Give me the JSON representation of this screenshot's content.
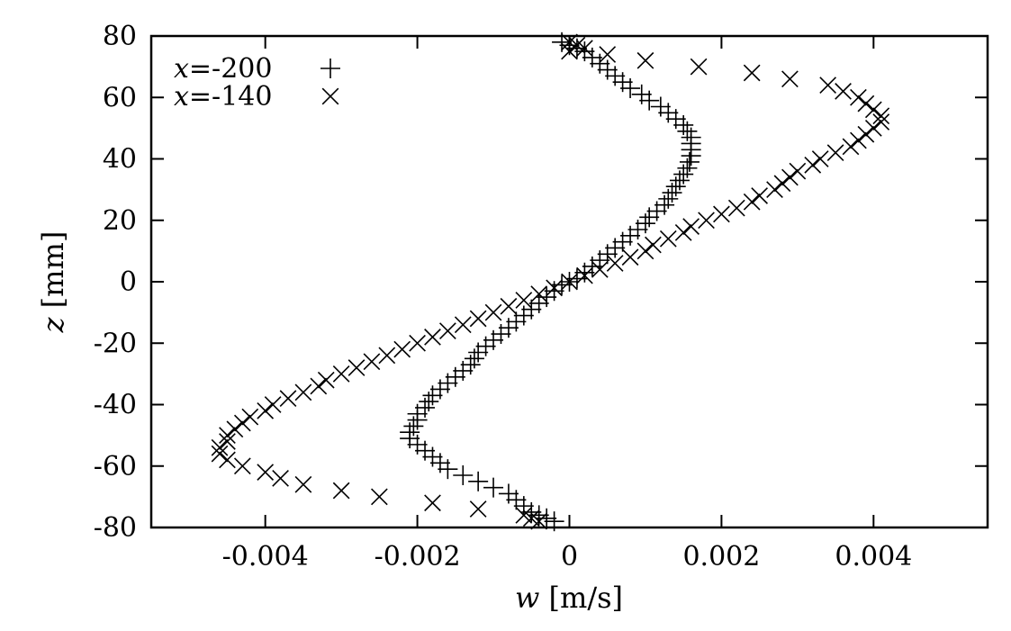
{
  "chart_data": {
    "type": "scatter",
    "title": "",
    "xlabel": {
      "var": "w",
      "unit": " [m/s]"
    },
    "ylabel": {
      "var": "z",
      "unit": " [mm]"
    },
    "xlim": [
      -0.0055,
      0.0055
    ],
    "ylim": [
      -80,
      80
    ],
    "xticks": [
      {
        "value": -0.004,
        "label": "-0.004"
      },
      {
        "value": -0.002,
        "label": "-0.002"
      },
      {
        "value": 0,
        "label": "0"
      },
      {
        "value": 0.002,
        "label": "0.002"
      },
      {
        "value": 0.004,
        "label": "0.004"
      }
    ],
    "yticks": [
      {
        "value": -80,
        "label": "-80"
      },
      {
        "value": -60,
        "label": "-60"
      },
      {
        "value": -40,
        "label": "-40"
      },
      {
        "value": -20,
        "label": "-20"
      },
      {
        "value": 0,
        "label": "0"
      },
      {
        "value": 20,
        "label": "20"
      },
      {
        "value": 40,
        "label": "40"
      },
      {
        "value": 60,
        "label": "60"
      },
      {
        "value": 80,
        "label": "80"
      }
    ],
    "grid": false,
    "legend_position": "top-left",
    "series": [
      {
        "name": {
          "var": "x",
          "rest": "=-200"
        },
        "marker": "plus",
        "points": [
          [
            -0.0001,
            78
          ],
          [
            0.0,
            77
          ],
          [
            0.0001,
            76
          ],
          [
            0.0002,
            75
          ],
          [
            0.0003,
            73
          ],
          [
            0.0004,
            71
          ],
          [
            0.0005,
            69
          ],
          [
            0.0006,
            67
          ],
          [
            0.0007,
            65
          ],
          [
            0.0008,
            63
          ],
          [
            0.00095,
            61
          ],
          [
            0.00105,
            59
          ],
          [
            0.0012,
            57
          ],
          [
            0.0013,
            55
          ],
          [
            0.0014,
            53
          ],
          [
            0.0015,
            51
          ],
          [
            0.00155,
            49
          ],
          [
            0.0016,
            47
          ],
          [
            0.0016,
            45
          ],
          [
            0.0016,
            43
          ],
          [
            0.0016,
            41
          ],
          [
            0.00158,
            39
          ],
          [
            0.00155,
            37
          ],
          [
            0.0015,
            35
          ],
          [
            0.00145,
            33
          ],
          [
            0.0014,
            31
          ],
          [
            0.00135,
            29
          ],
          [
            0.0013,
            27
          ],
          [
            0.00125,
            25
          ],
          [
            0.00115,
            23
          ],
          [
            0.00105,
            21
          ],
          [
            0.001,
            19
          ],
          [
            0.0009,
            17
          ],
          [
            0.0008,
            15
          ],
          [
            0.0007,
            13
          ],
          [
            0.0006,
            11
          ],
          [
            0.0005,
            9
          ],
          [
            0.0004,
            7
          ],
          [
            0.0003,
            5
          ],
          [
            0.0002,
            3
          ],
          [
            0.0001,
            1
          ],
          [
            0.0,
            0
          ],
          [
            -0.0001,
            -1
          ],
          [
            -0.0002,
            -3
          ],
          [
            -0.0003,
            -5
          ],
          [
            -0.0004,
            -7
          ],
          [
            -0.0005,
            -9
          ],
          [
            -0.0006,
            -11
          ],
          [
            -0.0007,
            -13
          ],
          [
            -0.0008,
            -15
          ],
          [
            -0.0009,
            -17
          ],
          [
            -0.001,
            -19
          ],
          [
            -0.0011,
            -21
          ],
          [
            -0.0012,
            -23
          ],
          [
            -0.00125,
            -25
          ],
          [
            -0.0013,
            -27
          ],
          [
            -0.0014,
            -29
          ],
          [
            -0.0015,
            -31
          ],
          [
            -0.0016,
            -33
          ],
          [
            -0.0017,
            -35
          ],
          [
            -0.0018,
            -37
          ],
          [
            -0.00185,
            -39
          ],
          [
            -0.0019,
            -41
          ],
          [
            -0.002,
            -43
          ],
          [
            -0.002,
            -45
          ],
          [
            -0.00205,
            -47
          ],
          [
            -0.0021,
            -49
          ],
          [
            -0.0021,
            -51
          ],
          [
            -0.002,
            -53
          ],
          [
            -0.0019,
            -55
          ],
          [
            -0.0018,
            -57
          ],
          [
            -0.0017,
            -59
          ],
          [
            -0.0016,
            -61
          ],
          [
            -0.0014,
            -63
          ],
          [
            -0.0012,
            -65
          ],
          [
            -0.001,
            -67
          ],
          [
            -0.0008,
            -69
          ],
          [
            -0.0007,
            -71
          ],
          [
            -0.0006,
            -73
          ],
          [
            -0.0005,
            -75
          ],
          [
            -0.0004,
            -76
          ],
          [
            -0.0003,
            -77
          ],
          [
            -0.0002,
            -78
          ]
        ]
      },
      {
        "name": {
          "var": "x",
          "rest": "=-140"
        },
        "marker": "cross",
        "points": [
          [
            0.0,
            78
          ],
          [
            0.0001,
            77
          ],
          [
            0.0002,
            76
          ],
          [
            0.0,
            75
          ],
          [
            0.0005,
            74
          ],
          [
            0.001,
            72
          ],
          [
            0.0017,
            70
          ],
          [
            0.0024,
            68
          ],
          [
            0.0029,
            66
          ],
          [
            0.0034,
            64
          ],
          [
            0.0036,
            62
          ],
          [
            0.0038,
            60
          ],
          [
            0.0039,
            58
          ],
          [
            0.004,
            56
          ],
          [
            0.0041,
            54
          ],
          [
            0.0041,
            52
          ],
          [
            0.004,
            50
          ],
          [
            0.0039,
            48
          ],
          [
            0.0038,
            46
          ],
          [
            0.0037,
            44
          ],
          [
            0.0035,
            42
          ],
          [
            0.0033,
            40
          ],
          [
            0.0032,
            38
          ],
          [
            0.003,
            36
          ],
          [
            0.0029,
            34
          ],
          [
            0.0028,
            32
          ],
          [
            0.0027,
            30
          ],
          [
            0.0025,
            28
          ],
          [
            0.0024,
            26
          ],
          [
            0.0022,
            24
          ],
          [
            0.002,
            22
          ],
          [
            0.0018,
            20
          ],
          [
            0.0016,
            18
          ],
          [
            0.0015,
            16
          ],
          [
            0.0013,
            14
          ],
          [
            0.0011,
            12
          ],
          [
            0.001,
            10
          ],
          [
            0.0008,
            8
          ],
          [
            0.0006,
            6
          ],
          [
            0.0004,
            4
          ],
          [
            0.0002,
            2
          ],
          [
            0.0,
            0
          ],
          [
            -0.0002,
            -2
          ],
          [
            -0.0004,
            -4
          ],
          [
            -0.0006,
            -6
          ],
          [
            -0.0008,
            -8
          ],
          [
            -0.001,
            -10
          ],
          [
            -0.0012,
            -12
          ],
          [
            -0.0014,
            -14
          ],
          [
            -0.0016,
            -16
          ],
          [
            -0.0018,
            -18
          ],
          [
            -0.002,
            -20
          ],
          [
            -0.0022,
            -22
          ],
          [
            -0.0024,
            -24
          ],
          [
            -0.0026,
            -26
          ],
          [
            -0.0028,
            -28
          ],
          [
            -0.003,
            -30
          ],
          [
            -0.0032,
            -32
          ],
          [
            -0.0033,
            -34
          ],
          [
            -0.0035,
            -36
          ],
          [
            -0.0037,
            -38
          ],
          [
            -0.0039,
            -40
          ],
          [
            -0.004,
            -42
          ],
          [
            -0.0042,
            -44
          ],
          [
            -0.0043,
            -46
          ],
          [
            -0.0044,
            -48
          ],
          [
            -0.0045,
            -50
          ],
          [
            -0.0045,
            -52
          ],
          [
            -0.0046,
            -54
          ],
          [
            -0.0046,
            -56
          ],
          [
            -0.0045,
            -58
          ],
          [
            -0.0043,
            -60
          ],
          [
            -0.004,
            -62
          ],
          [
            -0.0038,
            -64
          ],
          [
            -0.0035,
            -66
          ],
          [
            -0.003,
            -68
          ],
          [
            -0.0025,
            -70
          ],
          [
            -0.0018,
            -72
          ],
          [
            -0.0012,
            -74
          ],
          [
            -0.0006,
            -76
          ],
          [
            -0.0005,
            -77
          ],
          [
            -0.0004,
            -78
          ]
        ]
      }
    ]
  }
}
